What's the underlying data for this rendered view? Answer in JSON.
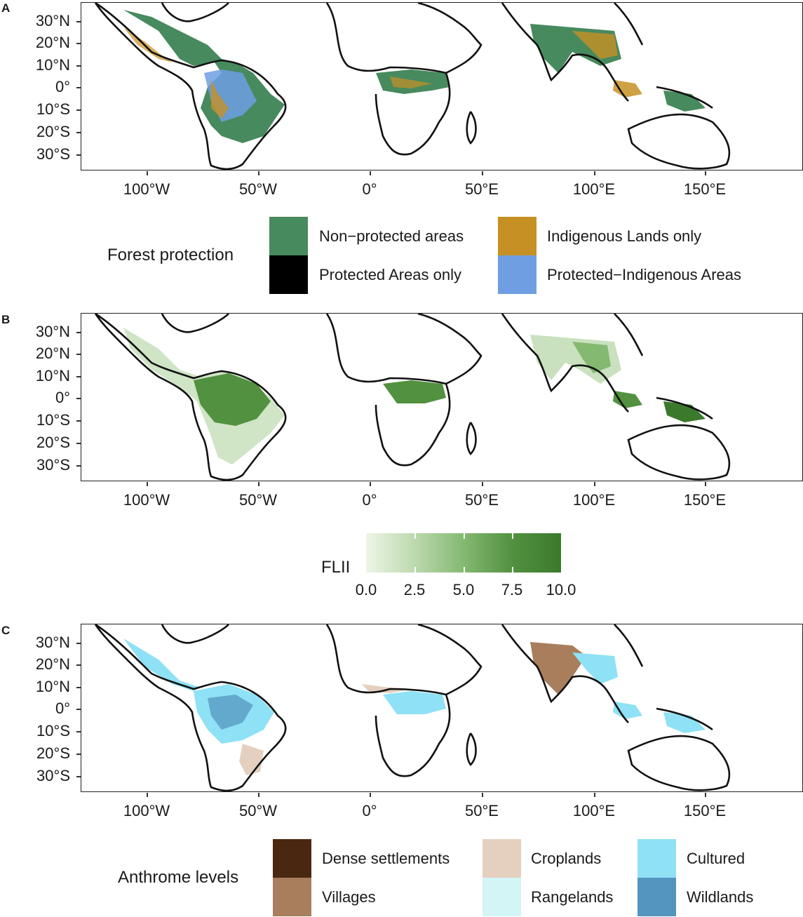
{
  "panels": [
    {
      "letter": "A"
    },
    {
      "letter": "B"
    },
    {
      "letter": "C"
    }
  ],
  "axes": {
    "lat_labels": [
      "30°N",
      "20°N",
      "10°N",
      "0°",
      "10°S",
      "20°S",
      "30°S"
    ],
    "lon_labels": [
      "100°W",
      "50°W",
      "0°",
      "50°E",
      "100°E",
      "150°E"
    ]
  },
  "legend_a": {
    "title": "Forest protection",
    "items": [
      {
        "label": "Non−protected areas",
        "color": "#478a5e"
      },
      {
        "label": "Protected Areas only",
        "color": "#000000"
      },
      {
        "label": "Indigenous Lands only",
        "color": "#c79024"
      },
      {
        "label": "Protected−Indigenous Areas",
        "color": "#6f9ee3"
      }
    ]
  },
  "legend_b": {
    "title": "FLII",
    "ticks": [
      "0.0",
      "2.5",
      "5.0",
      "7.5",
      "10.0"
    ],
    "color_low": "#eef5e6",
    "color_high": "#3b7a2c"
  },
  "legend_c": {
    "title": "Anthrome levels",
    "items": [
      {
        "label": "Dense settlements",
        "color": "#4a2710"
      },
      {
        "label": "Villages",
        "color": "#a87e5d"
      },
      {
        "label": "Croplands",
        "color": "#e5d0bf"
      },
      {
        "label": "Rangelands",
        "color": "#d4f5f5"
      },
      {
        "label": "Cultured",
        "color": "#8fe1f5"
      },
      {
        "label": "Wildlands",
        "color": "#5395bf"
      }
    ]
  }
}
